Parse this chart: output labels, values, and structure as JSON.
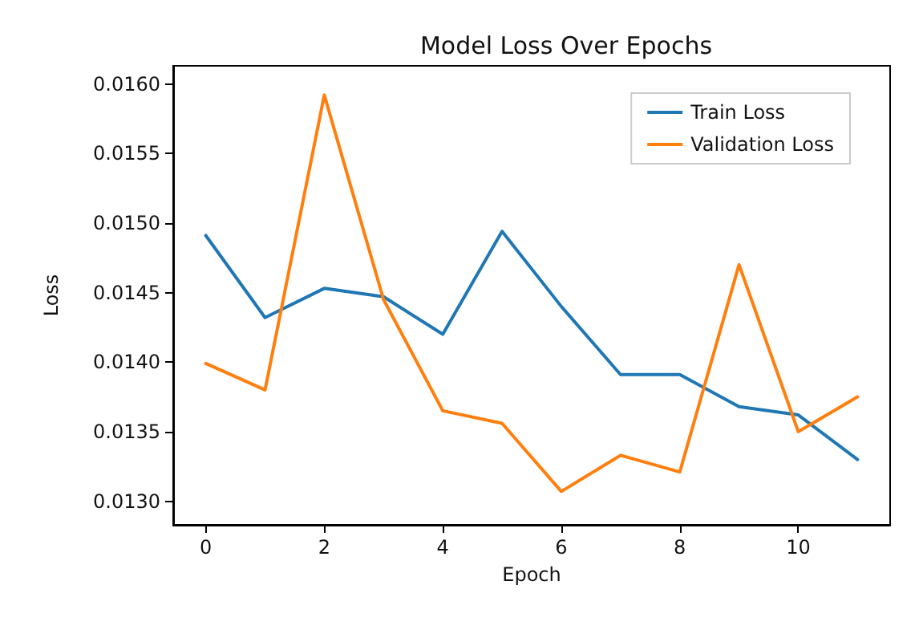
{
  "chart_data": {
    "type": "line",
    "title": "Model Loss Over Epochs",
    "xlabel": "Epoch",
    "ylabel": "Loss",
    "x": [
      0,
      1,
      2,
      3,
      4,
      5,
      6,
      7,
      8,
      9,
      10,
      11
    ],
    "series": [
      {
        "name": "Train Loss",
        "color": "#1f77b4",
        "values": [
          0.01491,
          0.01432,
          0.01453,
          0.01447,
          0.0142,
          0.01494,
          0.0144,
          0.01391,
          0.01391,
          0.01368,
          0.01362,
          0.0133
        ]
      },
      {
        "name": "Validation Loss",
        "color": "#ff7f0e",
        "values": [
          0.01399,
          0.0138,
          0.01592,
          0.01445,
          0.01365,
          0.01356,
          0.01307,
          0.01333,
          0.01321,
          0.0147,
          0.0135,
          0.01375
        ]
      }
    ],
    "xlim": [
      -0.55,
      11.55
    ],
    "xticks": [
      0,
      2,
      4,
      6,
      8,
      10
    ],
    "ylim": [
      0.01283,
      0.01613
    ],
    "yticks": [
      {
        "value": 0.013,
        "label": "0.0130"
      },
      {
        "value": 0.0135,
        "label": "0.0135"
      },
      {
        "value": 0.014,
        "label": "0.0140"
      },
      {
        "value": 0.0145,
        "label": "0.0145"
      },
      {
        "value": 0.015,
        "label": "0.0150"
      },
      {
        "value": 0.0155,
        "label": "0.0155"
      },
      {
        "value": 0.016,
        "label": "0.0160"
      }
    ],
    "grid": false,
    "legend": "top right",
    "marker": "none",
    "line_style": "solid"
  }
}
